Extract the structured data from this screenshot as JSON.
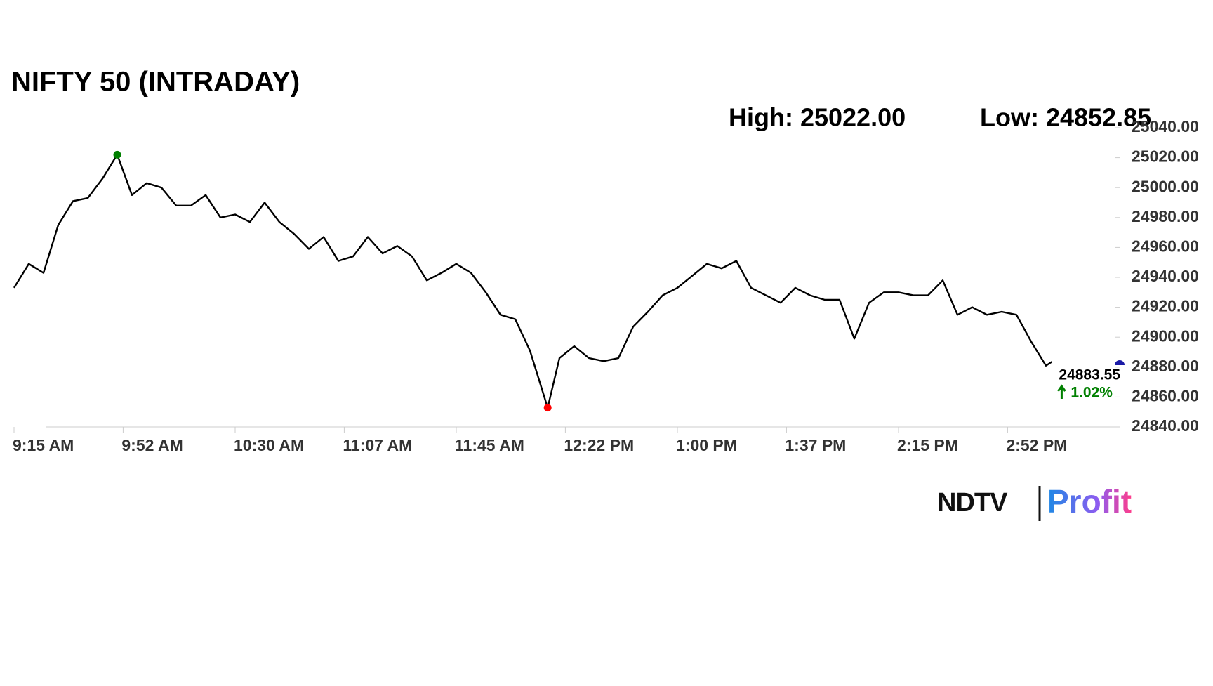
{
  "chart_data": {
    "type": "line",
    "title": "NIFTY 50 (INTRADAY)",
    "high_label": "High: 25022.00",
    "low_label": "Low: 24852.85",
    "last_label": "24883.55",
    "change_label": "1.02%",
    "brand": "NDTV",
    "brand_sub": "Profit",
    "x": [
      "9:15 AM",
      "9:20 AM",
      "9:25 AM",
      "9:30 AM",
      "9:35 AM",
      "9:40 AM",
      "9:45 AM",
      "9:50 AM",
      "9:55 AM",
      "10:00 AM",
      "10:05 AM",
      "10:10 AM",
      "10:15 AM",
      "10:20 AM",
      "10:25 AM",
      "10:30 AM",
      "10:35 AM",
      "10:40 AM",
      "10:45 AM",
      "10:50 AM",
      "10:55 AM",
      "11:00 AM",
      "11:05 AM",
      "11:10 AM",
      "11:15 AM",
      "11:20 AM",
      "11:25 AM",
      "11:30 AM",
      "11:35 AM",
      "11:40 AM",
      "11:45 AM",
      "11:50 AM",
      "11:55 AM",
      "12:00 PM",
      "12:05 PM",
      "12:10 PM",
      "12:16 PM",
      "12:20 PM",
      "12:25 PM",
      "12:30 PM",
      "12:35 PM",
      "12:40 PM",
      "12:45 PM",
      "12:50 PM",
      "12:55 PM",
      "1:00 PM",
      "1:05 PM",
      "1:10 PM",
      "1:15 PM",
      "1:20 PM",
      "1:25 PM",
      "1:30 PM",
      "1:35 PM",
      "1:40 PM",
      "1:45 PM",
      "1:50 PM",
      "1:55 PM",
      "2:00 PM",
      "2:05 PM",
      "2:10 PM",
      "2:15 PM",
      "2:20 PM",
      "2:25 PM",
      "2:30 PM",
      "2:35 PM",
      "2:40 PM",
      "2:45 PM",
      "2:50 PM",
      "2:55 PM",
      "3:00 PM",
      "3:05 PM",
      "3:07 PM"
    ],
    "series": [
      {
        "name": "NIFTY 50",
        "color": "#000000",
        "values": [
          24933,
          24949,
          24943,
          24975,
          24991,
          24993,
          25006,
          25022,
          24995,
          25003,
          25000,
          24988,
          24988,
          24995,
          24980,
          24982,
          24977,
          24990,
          24977,
          24969,
          24959,
          24967,
          24951,
          24954,
          24967,
          24956,
          24961,
          24954,
          24938,
          24943,
          24949,
          24943,
          24930,
          24915,
          24912,
          24891,
          24852.85,
          24886,
          24894,
          24886,
          24884,
          24886,
          24907,
          24917,
          24928,
          24933,
          24941,
          24949,
          24946,
          24951,
          24933,
          24928,
          24923,
          24933,
          24928,
          24925,
          24925,
          24899,
          24923,
          24930,
          24930,
          24928,
          24928,
          24938,
          24915,
          24920,
          24915,
          24917,
          24915,
          24897,
          24881,
          24883.55
        ]
      }
    ],
    "high_color": "#008000",
    "low_color": "#ff0000",
    "change_color": "#008000",
    "xlim": [
      "9:15 AM",
      "3:30 PM"
    ],
    "xticks": [
      "9:15 AM",
      "9:52 AM",
      "10:30 AM",
      "11:07 AM",
      "11:45 AM",
      "12:22 PM",
      "1:00 PM",
      "1:37 PM",
      "2:15 PM",
      "2:52 PM"
    ],
    "ylim": [
      24840,
      25040
    ],
    "yticks": [
      {
        "value": 24840,
        "label": "24840.00"
      },
      {
        "value": 24860,
        "label": "24860.00"
      },
      {
        "value": 24880,
        "label": "24880.00"
      },
      {
        "value": 24900,
        "label": "24900.00"
      },
      {
        "value": 24920,
        "label": "24920.00"
      },
      {
        "value": 24940,
        "label": "24940.00"
      },
      {
        "value": 24960,
        "label": "24960.00"
      },
      {
        "value": 24980,
        "label": "24980.00"
      },
      {
        "value": 25000,
        "label": "25000.00"
      },
      {
        "value": 25020,
        "label": "25020.00"
      },
      {
        "value": 25040,
        "label": "25040.00"
      }
    ]
  }
}
